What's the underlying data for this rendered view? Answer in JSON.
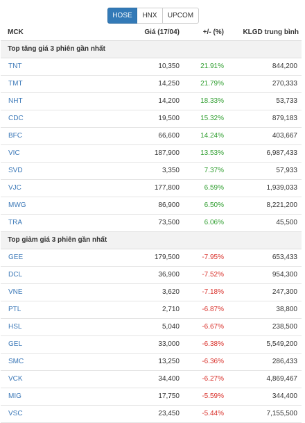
{
  "tabs": [
    {
      "label": "HOSE",
      "active": true
    },
    {
      "label": "HNX",
      "active": false
    },
    {
      "label": "UPCOM",
      "active": false
    }
  ],
  "columns": {
    "symbol": "MCK",
    "price": "Giá (17/04)",
    "change": "+/- (%)",
    "volume": "KLGD trung bình"
  },
  "colors": {
    "accent": "#337ab7",
    "up": "#2f9e2f",
    "down": "#d9302a",
    "link": "#3a77b7"
  },
  "sections": [
    {
      "title": "Top tăng giá 3 phiên gần nhất",
      "direction": "up",
      "rows": [
        {
          "symbol": "TNT",
          "price": "10,350",
          "change": "21.91%",
          "volume": "844,200"
        },
        {
          "symbol": "TMT",
          "price": "14,250",
          "change": "21.79%",
          "volume": "270,333"
        },
        {
          "symbol": "NHT",
          "price": "14,200",
          "change": "18.33%",
          "volume": "53,733"
        },
        {
          "symbol": "CDC",
          "price": "19,500",
          "change": "15.32%",
          "volume": "879,183"
        },
        {
          "symbol": "BFC",
          "price": "66,600",
          "change": "14.24%",
          "volume": "403,667"
        },
        {
          "symbol": "VIC",
          "price": "187,900",
          "change": "13.53%",
          "volume": "6,987,433"
        },
        {
          "symbol": "SVD",
          "price": "3,350",
          "change": "7.37%",
          "volume": "57,933"
        },
        {
          "symbol": "VJC",
          "price": "177,800",
          "change": "6.59%",
          "volume": "1,939,033"
        },
        {
          "symbol": "MWG",
          "price": "86,900",
          "change": "6.50%",
          "volume": "8,221,200"
        },
        {
          "symbol": "TRA",
          "price": "73,500",
          "change": "6.06%",
          "volume": "45,500"
        }
      ]
    },
    {
      "title": "Top giảm giá 3 phiên gần nhất",
      "direction": "down",
      "rows": [
        {
          "symbol": "GEE",
          "price": "179,500",
          "change": "-7.95%",
          "volume": "653,433"
        },
        {
          "symbol": "DCL",
          "price": "36,900",
          "change": "-7.52%",
          "volume": "954,300"
        },
        {
          "symbol": "VNE",
          "price": "3,620",
          "change": "-7.18%",
          "volume": "247,300"
        },
        {
          "symbol": "PTL",
          "price": "2,710",
          "change": "-6.87%",
          "volume": "38,800"
        },
        {
          "symbol": "HSL",
          "price": "5,040",
          "change": "-6.67%",
          "volume": "238,500"
        },
        {
          "symbol": "GEL",
          "price": "33,000",
          "change": "-6.38%",
          "volume": "5,549,200"
        },
        {
          "symbol": "SMC",
          "price": "13,250",
          "change": "-6.36%",
          "volume": "286,433"
        },
        {
          "symbol": "VCK",
          "price": "34,400",
          "change": "-6.27%",
          "volume": "4,869,467"
        },
        {
          "symbol": "MIG",
          "price": "17,750",
          "change": "-5.59%",
          "volume": "344,400"
        },
        {
          "symbol": "VSC",
          "price": "23,450",
          "change": "-5.44%",
          "volume": "7,155,500"
        }
      ]
    }
  ]
}
